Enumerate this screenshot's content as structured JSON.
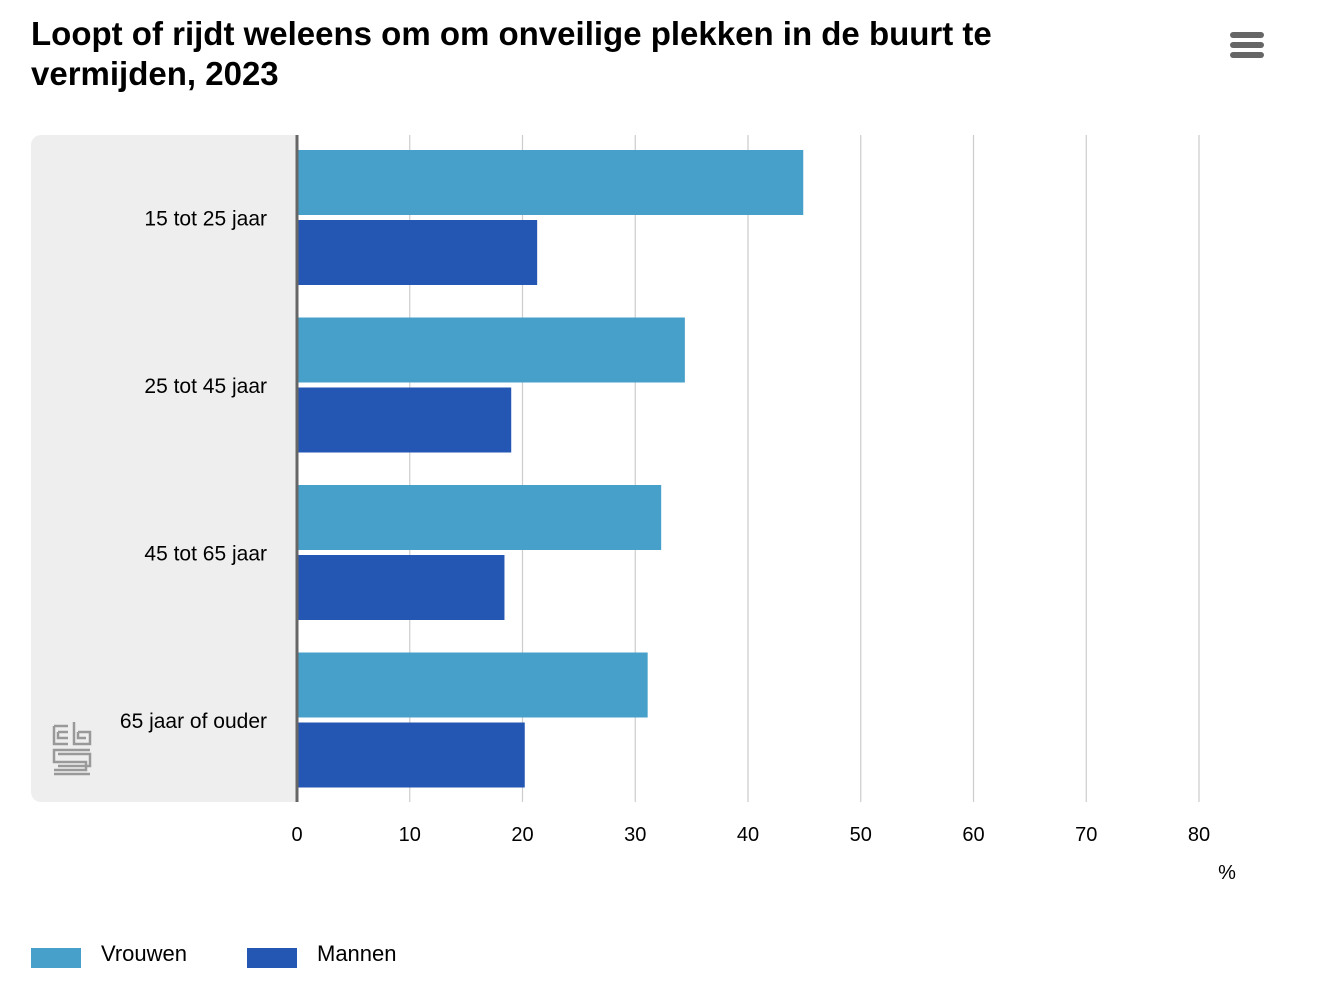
{
  "title": "Loopt of rijdt weleens om om onveilige plekken in de buurt te vermijden, 2023",
  "menu_icon": "hamburger-menu-icon",
  "logo_icon": "cbs-logo",
  "colors": {
    "vrouwen": "#47A0CA",
    "mannen": "#2456B3",
    "plot_background": "#EEEEEE",
    "gridline": "#CCCCCC",
    "axis": "#666666",
    "logo": "#999999"
  },
  "chart_data": {
    "type": "bar",
    "orientation": "horizontal",
    "title": "Loopt of rijdt weleens om om onveilige plekken in de buurt te vermijden, 2023",
    "categories": [
      "15 tot 25 jaar",
      "25 tot 45 jaar",
      "45 tot 65 jaar",
      "65 jaar of ouder"
    ],
    "series": [
      {
        "name": "Vrouwen",
        "values": [
          44.9,
          34.4,
          32.3,
          31.1
        ]
      },
      {
        "name": "Mannen",
        "values": [
          21.3,
          19.0,
          18.4,
          20.2
        ]
      }
    ],
    "xlim": [
      0,
      80
    ],
    "ticks": [
      0,
      10,
      20,
      30,
      40,
      50,
      60,
      70,
      80
    ],
    "xlabel": "%",
    "ylabel": "",
    "grid": true,
    "legend_position": "bottom-left"
  }
}
